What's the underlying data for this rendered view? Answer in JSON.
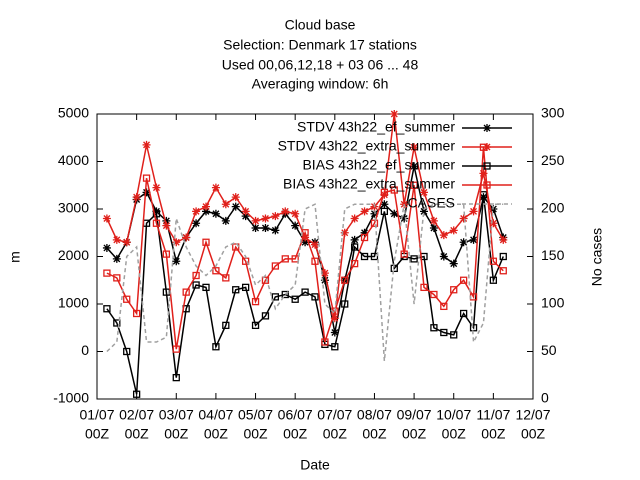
{
  "chart_data": {
    "type": "line",
    "title": "Cloud base",
    "subtitle": [
      "Selection: Denmark      17 stations",
      "Used  00,06,12,18  + 03 06 ... 48",
      "Averaging window:  6h"
    ],
    "x_label": "Date",
    "y_label": "m",
    "y2_label": "No cases",
    "xlim": [
      0,
      11
    ],
    "xticks": [
      {
        "value": 0,
        "label": [
          "01/07",
          "00Z"
        ]
      },
      {
        "value": 1,
        "label": [
          "02/07",
          "00Z"
        ]
      },
      {
        "value": 2,
        "label": [
          "03/07",
          "00Z"
        ]
      },
      {
        "value": 3,
        "label": [
          "04/07",
          "00Z"
        ]
      },
      {
        "value": 4,
        "label": [
          "05/07",
          "00Z"
        ]
      },
      {
        "value": 5,
        "label": [
          "06/07",
          "00Z"
        ]
      },
      {
        "value": 6,
        "label": [
          "07/07",
          "00Z"
        ]
      },
      {
        "value": 7,
        "label": [
          "08/07",
          "00Z"
        ]
      },
      {
        "value": 8,
        "label": [
          "09/07",
          "00Z"
        ]
      },
      {
        "value": 9,
        "label": [
          "10/07",
          "00Z"
        ]
      },
      {
        "value": 10,
        "label": [
          "11/07",
          "00Z"
        ]
      },
      {
        "value": 11,
        "label": [
          "12/07",
          "00Z"
        ]
      }
    ],
    "ylim": [
      -1000,
      5000
    ],
    "yticks": [
      -1000,
      0,
      1000,
      2000,
      3000,
      4000,
      5000
    ],
    "y2lim": [
      0,
      300
    ],
    "y2ticks": [
      0,
      50,
      100,
      150,
      200,
      250,
      300
    ],
    "grid": false,
    "legend": "top-right",
    "x": [
      0.25,
      0.5,
      0.75,
      1,
      1.25,
      1.5,
      1.75,
      2,
      2.25,
      2.5,
      2.75,
      3,
      3.25,
      3.5,
      3.75,
      4,
      4.25,
      4.5,
      4.75,
      5,
      5.25,
      5.5,
      5.75,
      6,
      6.25,
      6.5,
      6.75,
      7,
      7.25,
      7.5,
      7.75,
      8,
      8.25,
      8.5,
      8.75,
      9,
      9.25,
      9.5,
      9.75,
      10,
      10.25
    ],
    "series": [
      {
        "name": "STDV 43h22_ef_summer",
        "color": "#000000",
        "marker": "star",
        "values": [
          2180,
          1950,
          2300,
          3200,
          3350,
          2950,
          2750,
          1900,
          2400,
          2700,
          2950,
          2900,
          2750,
          3050,
          2850,
          2600,
          2600,
          2550,
          2900,
          2650,
          2300,
          2300,
          1500,
          400,
          1500,
          2350,
          2500,
          2900,
          3100,
          2900,
          2800,
          3900,
          2950,
          2600,
          2000,
          1850,
          2300,
          2350,
          3250,
          3000,
          2400
        ]
      },
      {
        "name": "STDV 43h22_extra_summer",
        "color": "#e0201b",
        "marker": "star",
        "values": [
          2800,
          2350,
          2300,
          3250,
          4350,
          3450,
          2650,
          2300,
          2400,
          2950,
          3050,
          3450,
          3100,
          3250,
          2950,
          2750,
          2800,
          2850,
          2950,
          2900,
          2400,
          2250,
          1650,
          700,
          2500,
          2800,
          2950,
          3050,
          3300,
          5000,
          3100,
          4300,
          3350,
          2750,
          2450,
          2550,
          2800,
          2950,
          3750,
          2700,
          2350
        ]
      },
      {
        "name": "BIAS 43h22_ef_summer",
        "color": "#000000",
        "marker": "square",
        "values": [
          900,
          600,
          0,
          -900,
          2700,
          2900,
          1250,
          -550,
          900,
          1400,
          1350,
          100,
          550,
          1300,
          1350,
          550,
          750,
          1150,
          1200,
          1100,
          1250,
          1150,
          150,
          100,
          1000,
          2200,
          2000,
          2000,
          2950,
          1750,
          2000,
          1950,
          2000,
          500,
          400,
          350,
          800,
          500,
          3300,
          1500,
          2000
        ]
      },
      {
        "name": "BIAS 43h22_extra_summer",
        "color": "#e0201b",
        "marker": "square",
        "values": [
          1650,
          1550,
          1100,
          800,
          3650,
          2700,
          2050,
          50,
          1250,
          1600,
          2300,
          1700,
          1550,
          2200,
          1900,
          1050,
          1500,
          1800,
          1950,
          1950,
          2500,
          1900,
          200,
          850,
          1500,
          1850,
          2400,
          2700,
          3350,
          3400,
          2050,
          3500,
          1350,
          1200,
          950,
          1300,
          1500,
          1150,
          4300,
          1900,
          1700
        ]
      },
      {
        "name": "CASES",
        "color": "#a0a0a0",
        "marker": "none",
        "dash": true,
        "axis": "y2",
        "values": [
          50,
          60,
          150,
          160,
          60,
          60,
          65,
          190,
          160,
          140,
          130,
          140,
          160,
          165,
          150,
          120,
          130,
          95,
          110,
          120,
          200,
          205,
          100,
          90,
          200,
          205,
          205,
          205,
          40,
          145,
          205,
          100,
          200,
          205,
          205,
          205,
          205,
          60,
          80,
          205,
          205
        ]
      }
    ]
  }
}
